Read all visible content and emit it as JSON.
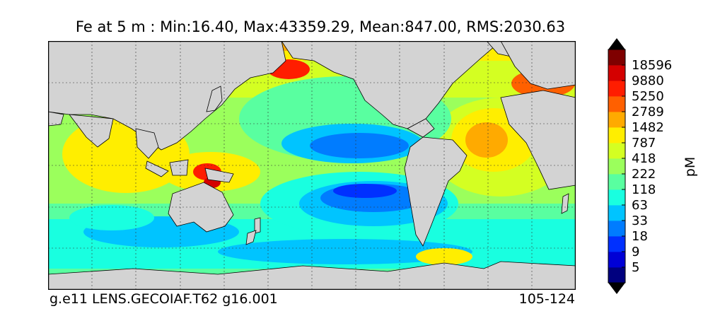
{
  "title": "Fe at 5 m : Min:16.40, Max:43359.29, Mean:847.00, RMS:2030.63",
  "footer": {
    "left": "g.e11 LENS.GECOIAF.T62 g16.001",
    "right": "105-124"
  },
  "chart_data": {
    "type": "heatmap",
    "variable": "Fe",
    "depth": "5 m",
    "stats": {
      "min": 16.4,
      "max": 43359.29,
      "mean": 847.0,
      "rms": 2030.63
    },
    "colorbar": {
      "label": "pM",
      "extend": "both",
      "tick_labels": [
        "5",
        "9",
        "18",
        "33",
        "63",
        "118",
        "222",
        "418",
        "787",
        "1482",
        "2789",
        "5250",
        "9880",
        "18596"
      ],
      "colors": [
        "#00007f",
        "#0000d6",
        "#0030ff",
        "#007cff",
        "#00c4ff",
        "#19ffe0",
        "#59ffa0",
        "#9bff5c",
        "#d4ff22",
        "#ffee00",
        "#ffaa00",
        "#ff6000",
        "#ff1d00",
        "#d40000",
        "#7f0000"
      ]
    },
    "land_color": "#d3d3d3",
    "grid": true
  }
}
